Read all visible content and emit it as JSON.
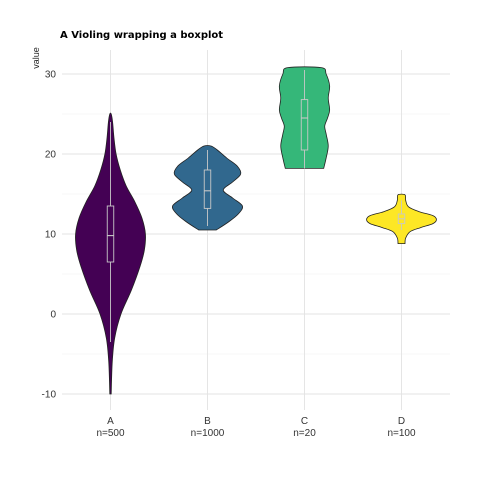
{
  "chart_data": {
    "type": "violin",
    "title": "A Violing wrapping a boxplot",
    "ylabel": "value",
    "xlabel": "",
    "ylim": [
      -12,
      33
    ],
    "yticks": [
      -10,
      0,
      10,
      20,
      30
    ],
    "grid": true,
    "legend": "none",
    "categories": [
      {
        "name": "A",
        "n_label": "n=500",
        "color": "#440154",
        "min": -10,
        "max": 25,
        "box": {
          "q1": 6.5,
          "median": 9.8,
          "q3": 13.5
        },
        "whiskers": [
          -3.5,
          24
        ],
        "density": [
          [
            -10,
            0.02
          ],
          [
            -6,
            0.05
          ],
          [
            -3,
            0.12
          ],
          [
            0,
            0.3
          ],
          [
            3,
            0.6
          ],
          [
            6,
            0.85
          ],
          [
            8,
            0.97
          ],
          [
            10,
            1.0
          ],
          [
            12,
            0.9
          ],
          [
            14,
            0.7
          ],
          [
            16,
            0.45
          ],
          [
            18,
            0.28
          ],
          [
            20,
            0.16
          ],
          [
            22,
            0.1
          ],
          [
            24,
            0.06
          ],
          [
            25,
            0.02
          ]
        ]
      },
      {
        "name": "B",
        "n_label": "n=1000",
        "color": "#31688e",
        "min": 10.5,
        "max": 21,
        "box": {
          "q1": 13.2,
          "median": 15.4,
          "q3": 18
        },
        "whiskers": [
          11,
          20.5
        ],
        "density": [
          [
            10.5,
            0.25
          ],
          [
            11.5,
            0.6
          ],
          [
            12.5,
            0.88
          ],
          [
            13.5,
            1.0
          ],
          [
            14.5,
            0.72
          ],
          [
            15.5,
            0.45
          ],
          [
            16.5,
            0.72
          ],
          [
            17.5,
            0.95
          ],
          [
            18.5,
            0.85
          ],
          [
            19.5,
            0.55
          ],
          [
            20.5,
            0.28
          ],
          [
            21,
            0.1
          ]
        ]
      },
      {
        "name": "C",
        "n_label": "n=20",
        "color": "#35b779",
        "min": 18.2,
        "max": 30.8,
        "box": {
          "q1": 20.5,
          "median": 24.5,
          "q3": 26.8
        },
        "whiskers": [
          18.2,
          30.5
        ],
        "density": [
          [
            18.2,
            0.55
          ],
          [
            19.5,
            0.62
          ],
          [
            21,
            0.68
          ],
          [
            22.5,
            0.62
          ],
          [
            23.5,
            0.58
          ],
          [
            24.5,
            0.66
          ],
          [
            25.5,
            0.72
          ],
          [
            27,
            0.68
          ],
          [
            28.5,
            0.72
          ],
          [
            30,
            0.62
          ],
          [
            30.8,
            0.48
          ]
        ]
      },
      {
        "name": "D",
        "n_label": "n=100",
        "color": "#fde725",
        "min": 8.8,
        "max": 14.9,
        "box": {
          "q1": 11.3,
          "median": 11.9,
          "q3": 12.5
        },
        "whiskers": [
          10.5,
          14.2
        ],
        "density": [
          [
            8.8,
            0.1
          ],
          [
            9.5,
            0.12
          ],
          [
            10.3,
            0.25
          ],
          [
            10.8,
            0.55
          ],
          [
            11.3,
            0.9
          ],
          [
            11.8,
            1.0
          ],
          [
            12.3,
            0.9
          ],
          [
            12.8,
            0.5
          ],
          [
            13.4,
            0.2
          ],
          [
            14.2,
            0.12
          ],
          [
            14.9,
            0.1
          ]
        ]
      }
    ]
  }
}
